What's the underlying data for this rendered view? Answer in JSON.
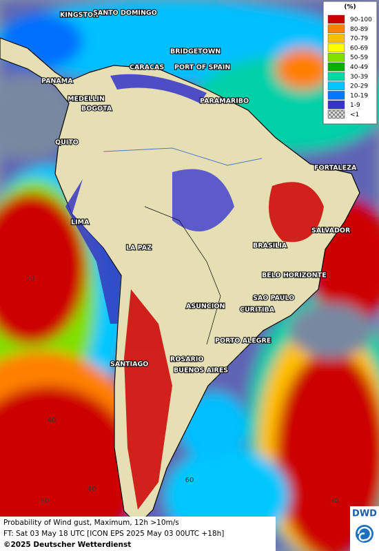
{
  "legend": {
    "title": "(%)",
    "items": [
      {
        "label": "90-100",
        "color": "#cc0000"
      },
      {
        "label": "80-89",
        "color": "#ff7f00"
      },
      {
        "label": "70-79",
        "color": "#ffbf00"
      },
      {
        "label": "60-69",
        "color": "#ffff00"
      },
      {
        "label": "50-59",
        "color": "#80e000"
      },
      {
        "label": "40-49",
        "color": "#00b000"
      },
      {
        "label": "30-39",
        "color": "#00d8a8"
      },
      {
        "label": "20-29",
        "color": "#00c8ff"
      },
      {
        "label": "10-19",
        "color": "#0078ff"
      },
      {
        "label": "1-9",
        "color": "#3434c8"
      },
      {
        "label": "<1",
        "color": "checker"
      }
    ]
  },
  "cities": [
    "KINGSTON",
    "SANTO DOMINGO",
    "BRIDGETOWN",
    "CARACAS",
    "PORT OF SPAIN",
    "PANAMA",
    "MEDELLIN",
    "BOGOTA",
    "PARAMARIBO",
    "QUITO",
    "FORTALEZA",
    "LIMA",
    "SALVADOR",
    "LA PAZ",
    "BRASILIA",
    "BELO HORIZONTE",
    "SAO PAULO",
    "ASUNCION",
    "CURITIBA",
    "PORTO ALEGRE",
    "ROSARIO",
    "SANTIAGO",
    "BUENOS AIRES"
  ],
  "grid_labels": [
    "20",
    "40",
    "80",
    "40",
    "60",
    "30"
  ],
  "footer": {
    "line1": "Probability of Wind gust, Maximum, 12h >10m/s",
    "line2": "FT: Sat 03 May 18 UTC [ICON EPS 2025 May 03 00UTC +18h]",
    "line3": "©2025 Deutscher Wetterdienst"
  },
  "logo": "DWD"
}
